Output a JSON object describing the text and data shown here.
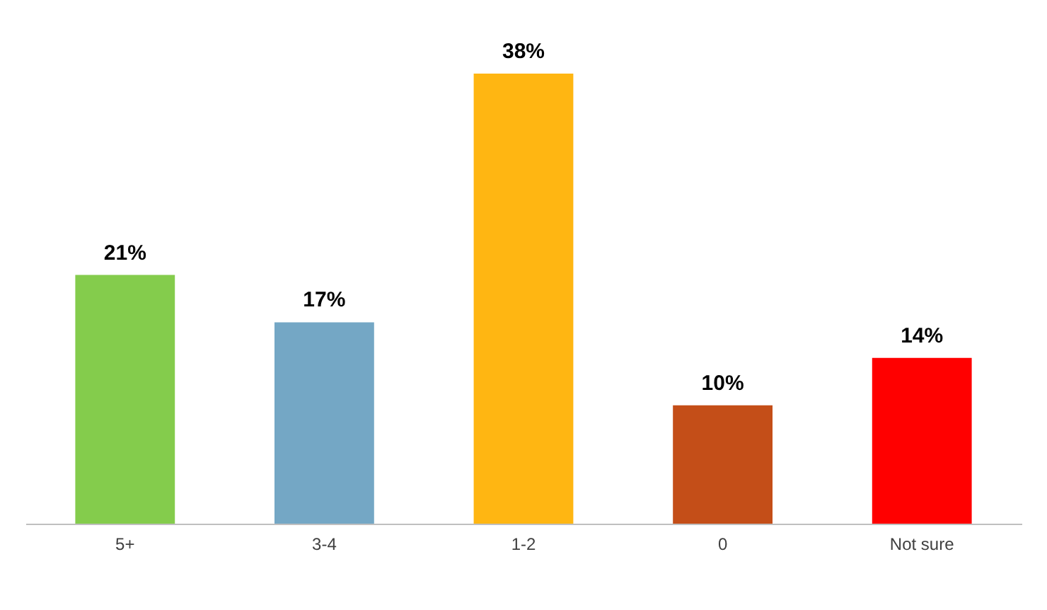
{
  "chart_data": {
    "type": "bar",
    "categories": [
      "5+",
      "3-4",
      "1-2",
      "0",
      "Not sure"
    ],
    "values": [
      21,
      17,
      38,
      10,
      14
    ],
    "colors": [
      "#84cc4c",
      "#74a7c5",
      "#ffb612",
      "#c44e18",
      "#ff0000"
    ],
    "value_labels": [
      "21%",
      "17%",
      "38%",
      "10%",
      "14%"
    ],
    "grid": false,
    "legend": false
  }
}
